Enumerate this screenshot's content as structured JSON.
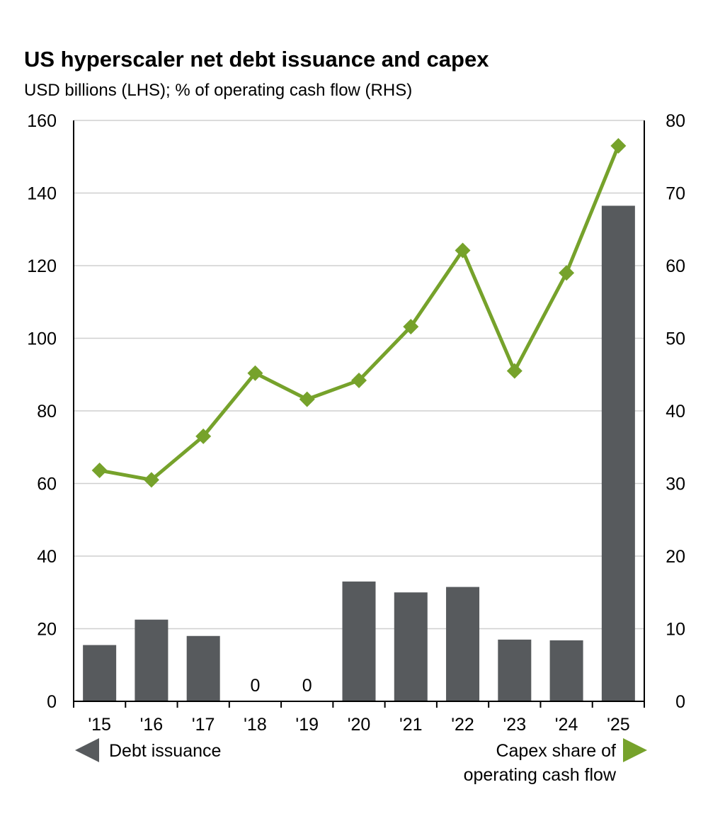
{
  "chart_data": {
    "type": "bar",
    "title": "US hyperscaler net debt issuance and capex",
    "subtitle": "USD billions (LHS); % of operating cash flow (RHS)",
    "categories": [
      "'15",
      "'16",
      "'17",
      "'18",
      "'19",
      "'20",
      "'21",
      "'22",
      "'23",
      "'24",
      "'25"
    ],
    "series": [
      {
        "name": "Debt issuance",
        "type": "bar",
        "axis": "left",
        "color": "#575a5d",
        "values": [
          15.5,
          22.5,
          18,
          0,
          0,
          33,
          30,
          31.5,
          17,
          16.8,
          136.5
        ],
        "data_labels": [
          "",
          "",
          "",
          "0",
          "0",
          "",
          "",
          "",
          "",
          "",
          ""
        ]
      },
      {
        "name": "Capex share of operating cash flow",
        "type": "line",
        "axis": "right",
        "color": "#76a22b",
        "marker": "diamond",
        "values": [
          31.8,
          30.5,
          36.5,
          45.2,
          41.6,
          44.2,
          51.6,
          62.1,
          45.5,
          59,
          76.5
        ]
      }
    ],
    "left_axis": {
      "min": 0,
      "max": 160,
      "ticks": [
        0,
        20,
        40,
        60,
        80,
        100,
        120,
        140,
        160
      ]
    },
    "right_axis": {
      "min": 0,
      "max": 80,
      "ticks": [
        0,
        10,
        20,
        30,
        40,
        50,
        60,
        70,
        80
      ]
    },
    "grid": true,
    "legend": {
      "left_label": "Debt issuance",
      "right_label_lines": [
        "Capex share of",
        "operating cash flow"
      ]
    }
  }
}
